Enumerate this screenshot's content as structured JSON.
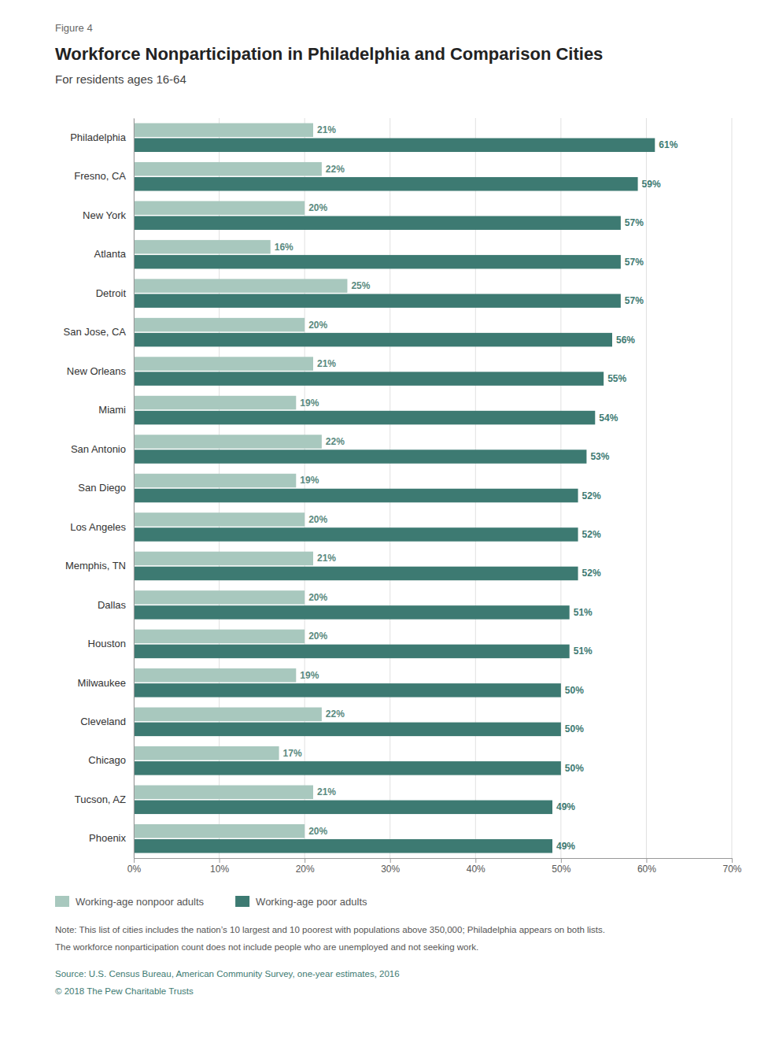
{
  "chart_data": {
    "type": "bar",
    "orientation": "horizontal",
    "title": "Workforce Nonparticipation in Philadelphia and Comparison Cities",
    "subtitle": "For residents ages 16-64",
    "annotations": [
      "Figure 4",
      "Note: This list of cities includes the nation’s 10 largest and 10 poorest with populations above 350,000; Philadelphia appears on both lists.",
      "The workforce nonparticipation count does not include people who are unemployed and not seeking work.",
      "Source: U.S. Census Bureau, American Community Survey, one-year estimates, 2016",
      "© 2018 The Pew Charitable Trusts"
    ],
    "categories": [
      "Philadelphia",
      "Fresno, CA",
      "New York",
      "Atlanta",
      "Detroit",
      "San Jose, CA",
      "New Orleans",
      "Miami",
      "San Antonio",
      "San Diego",
      "Los Angeles",
      "Memphis, TN",
      "Dallas",
      "Houston",
      "Milwaukee",
      "Cleveland",
      "Chicago",
      "Tucson, AZ",
      "Phoenix"
    ],
    "series": [
      {
        "name": "Working-age nonpoor adults",
        "color": "#a8c8be",
        "values": [
          21,
          22,
          20,
          16,
          25,
          20,
          21,
          19,
          22,
          19,
          20,
          21,
          20,
          20,
          19,
          22,
          17,
          21,
          20
        ],
        "value_labels": [
          "21%",
          "22%",
          "20%",
          "16%",
          "25%",
          "20%",
          "21%",
          "19%",
          "22%",
          "19%",
          "20%",
          "21%",
          "20%",
          "20%",
          "19%",
          "22%",
          "17%",
          "21%",
          "20%"
        ]
      },
      {
        "name": "Working-age poor adults",
        "color": "#3d7a72",
        "values": [
          61,
          59,
          57,
          57,
          57,
          56,
          55,
          54,
          53,
          52,
          52,
          52,
          51,
          51,
          50,
          50,
          50,
          49,
          49
        ],
        "value_labels": [
          "61%",
          "59%",
          "57%",
          "57%",
          "57%",
          "56%",
          "55%",
          "54%",
          "53%",
          "52%",
          "52%",
          "52%",
          "51%",
          "51%",
          "50%",
          "50%",
          "50%",
          "49%",
          "49%"
        ]
      }
    ],
    "xlim": [
      0,
      70
    ],
    "xticks": [
      {
        "value": 0,
        "label": "0%"
      },
      {
        "value": 10,
        "label": "10%"
      },
      {
        "value": 20,
        "label": "20%"
      },
      {
        "value": 30,
        "label": "30%"
      },
      {
        "value": 40,
        "label": "40%"
      },
      {
        "value": 50,
        "label": "50%"
      },
      {
        "value": 60,
        "label": "60%"
      },
      {
        "value": 70,
        "label": "70%"
      }
    ],
    "grid": true,
    "data_labels": true,
    "legend": "bottom"
  }
}
